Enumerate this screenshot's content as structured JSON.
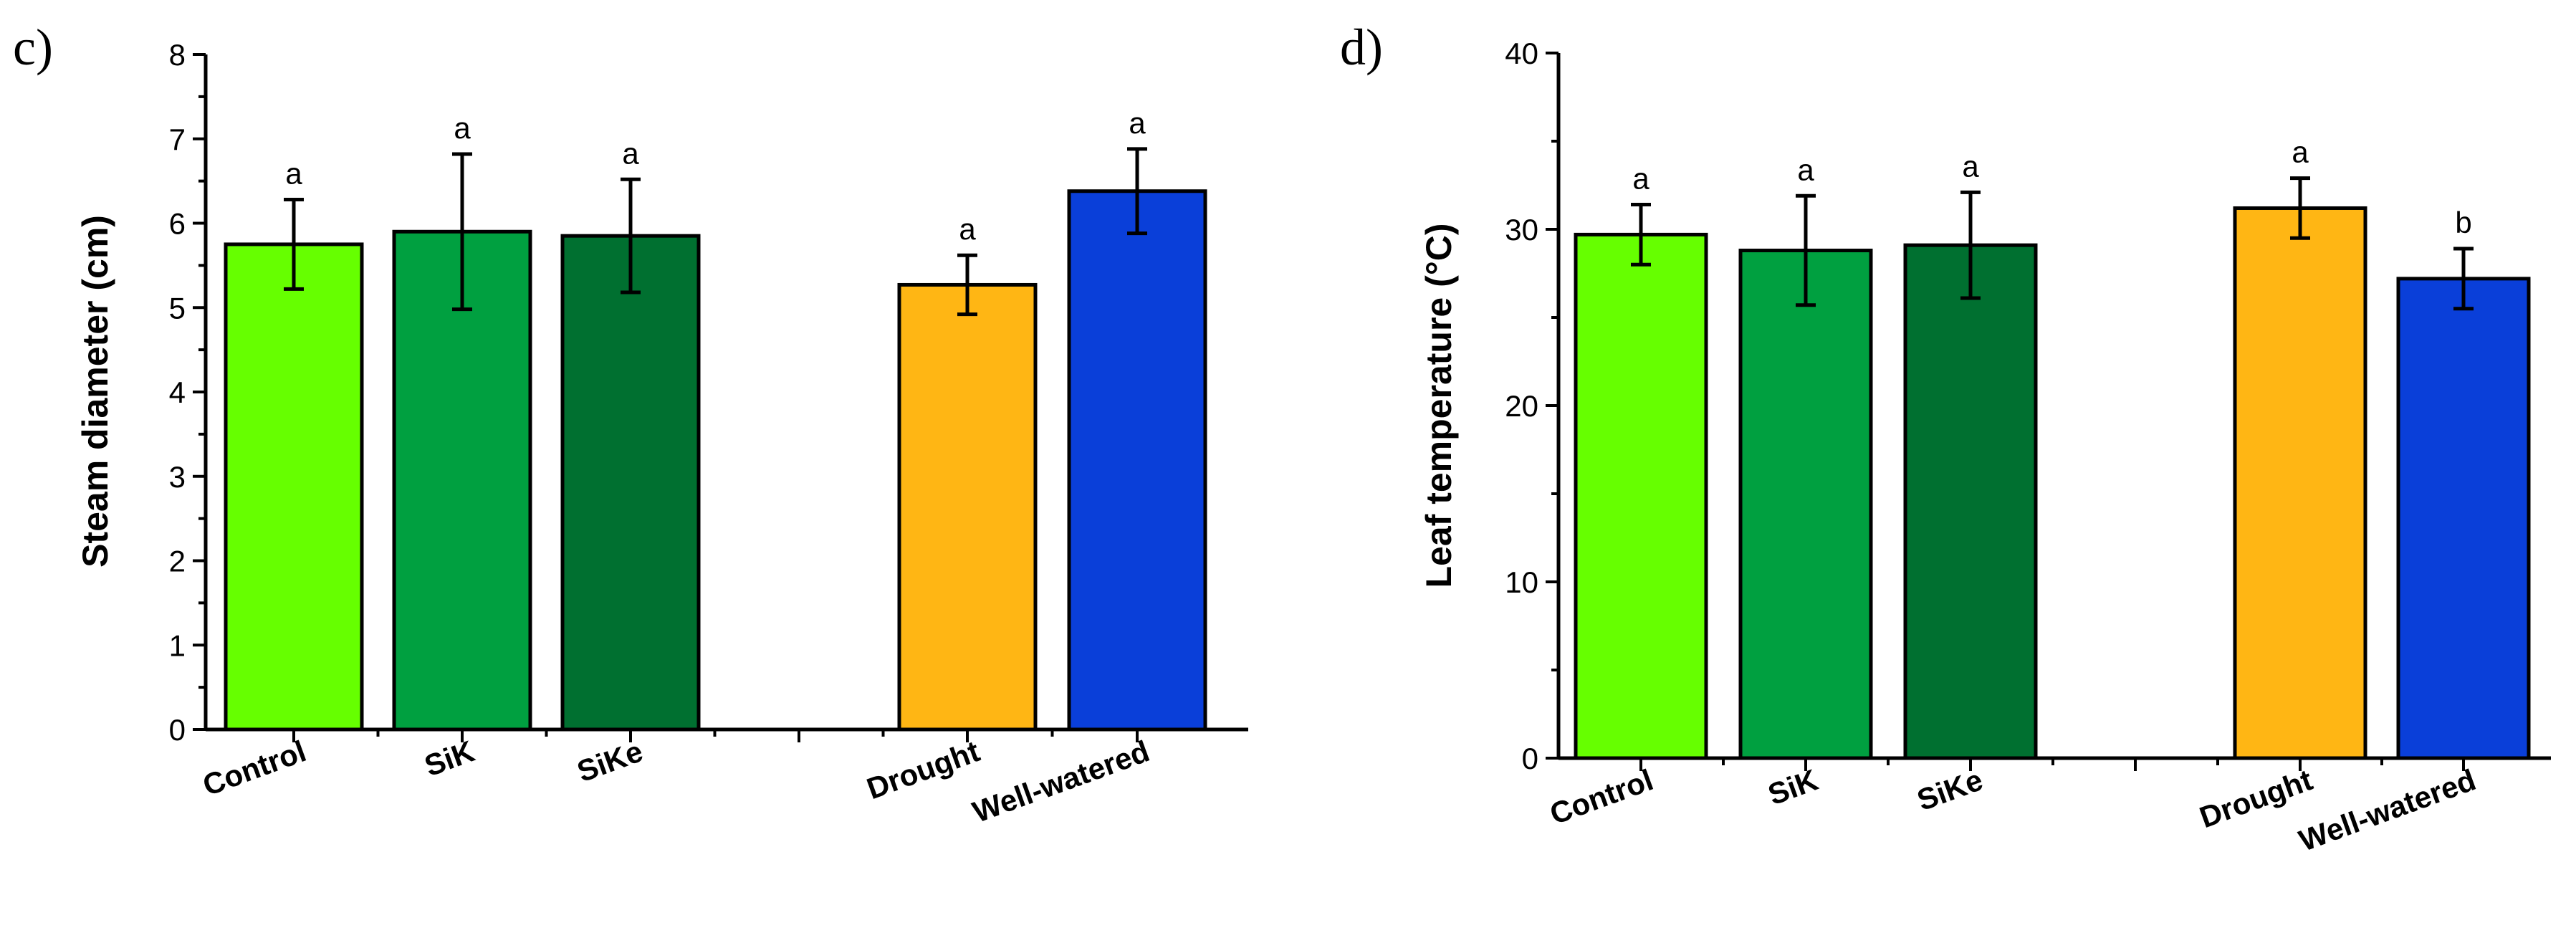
{
  "chart_data": [
    {
      "type": "bar",
      "panel_label": "c)",
      "title": "",
      "xlabel": "",
      "ylabel": "Steam diameter (cm)",
      "ylim": [
        0,
        8
      ],
      "yticks": [
        "0",
        "1",
        "2",
        "3",
        "4",
        "5",
        "6",
        "7",
        "8"
      ],
      "categories": [
        "Control",
        "SiK",
        "SiKe",
        "Drought",
        "Well-watered"
      ],
      "values": [
        5.75,
        5.9,
        5.85,
        5.27,
        6.38
      ],
      "errors": [
        0.53,
        0.92,
        0.67,
        0.35,
        0.5
      ],
      "significance": [
        "a",
        "a",
        "a",
        "a",
        "a"
      ],
      "colors": [
        "#66ff00",
        "#00a040",
        "#007030",
        "#ffb614",
        "#0a3fd9"
      ]
    },
    {
      "type": "bar",
      "panel_label": "d)",
      "title": "",
      "xlabel": "",
      "ylabel": "Leaf temperature (°C)",
      "ylim": [
        0,
        40
      ],
      "yticks": [
        "0",
        "10",
        "20",
        "30",
        "40"
      ],
      "categories": [
        "Control",
        "SiK",
        "SiKe",
        "Drought",
        "Well-watered"
      ],
      "values": [
        29.7,
        28.8,
        29.1,
        31.2,
        27.2
      ],
      "errors": [
        1.7,
        3.1,
        3.0,
        1.7,
        1.7
      ],
      "significance": [
        "a",
        "a",
        "a",
        "a",
        "b"
      ],
      "colors": [
        "#66ff00",
        "#00a040",
        "#007030",
        "#ffb614",
        "#0a3fd9"
      ]
    }
  ]
}
